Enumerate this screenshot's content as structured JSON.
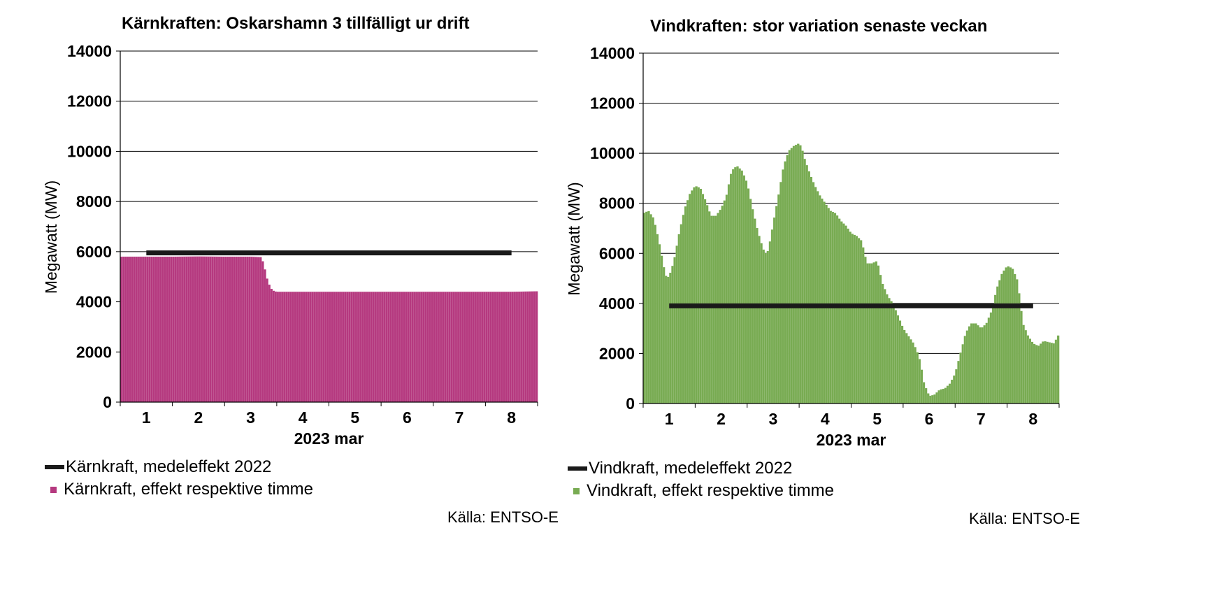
{
  "chart_data": [
    {
      "type": "bar",
      "title": "Kärnkraften: Oskarshamn 3 tillfälligt ur drift",
      "ylabel": "Megawatt (MW)",
      "xlabel": "2023 mar",
      "ylim": [
        0,
        14000
      ],
      "yticks": [
        "0",
        "2000",
        "4000",
        "6000",
        "8000",
        "10000",
        "12000",
        "14000"
      ],
      "x_tick_labels": [
        "1",
        "2",
        "3",
        "4",
        "5",
        "6",
        "7",
        "8"
      ],
      "x_start_day": 0.5,
      "x_end_day": 8.5,
      "grid": true,
      "bar_color": "#b5397f",
      "mean_line_color": "#1a1a1a",
      "mean_line": {
        "name": "Kärnkraft, medeleffekt 2022",
        "value": 5950,
        "x_from_day": 1,
        "x_to_day": 8
      },
      "series": [
        {
          "name": "Kärnkraft, effekt respektive timme",
          "x_day": [
            0.5,
            1.0,
            1.5,
            2.0,
            2.5,
            3.0,
            3.1,
            3.2,
            3.25,
            3.3,
            3.35,
            3.4,
            3.45,
            3.5,
            4.0,
            5.0,
            6.0,
            7.0,
            8.0,
            8.5
          ],
          "values": [
            5800,
            5800,
            5800,
            5810,
            5800,
            5800,
            5790,
            5780,
            5500,
            5000,
            4700,
            4500,
            4420,
            4400,
            4400,
            4400,
            4400,
            4400,
            4400,
            4420
          ]
        }
      ]
    },
    {
      "type": "bar",
      "title": "Vindkraften: stor variation senaste veckan",
      "ylabel": "Megawatt (MW)",
      "xlabel": "2023 mar",
      "ylim": [
        0,
        14000
      ],
      "yticks": [
        "0",
        "2000",
        "4000",
        "6000",
        "8000",
        "10000",
        "12000",
        "14000"
      ],
      "x_tick_labels": [
        "1",
        "2",
        "3",
        "4",
        "5",
        "6",
        "7",
        "8"
      ],
      "x_start_day": 0.5,
      "x_end_day": 8.5,
      "grid": true,
      "bar_color": "#78ab52",
      "mean_line_color": "#1a1a1a",
      "mean_line": {
        "name": "Vindkraft, medeleffekt 2022",
        "value": 3900,
        "x_from_day": 1,
        "x_to_day": 8
      },
      "series": [
        {
          "name": "Vindkraft, effekt respektive timme",
          "x_day": [
            0.5,
            0.6,
            0.7,
            0.8,
            0.9,
            0.95,
            1.0,
            1.05,
            1.1,
            1.2,
            1.3,
            1.4,
            1.5,
            1.6,
            1.7,
            1.8,
            1.9,
            2.0,
            2.1,
            2.2,
            2.3,
            2.4,
            2.5,
            2.6,
            2.7,
            2.8,
            2.85,
            2.9,
            2.95,
            3.0,
            3.1,
            3.2,
            3.3,
            3.4,
            3.5,
            3.55,
            3.6,
            3.7,
            3.8,
            3.9,
            4.0,
            4.1,
            4.2,
            4.3,
            4.4,
            4.5,
            4.6,
            4.7,
            4.8,
            4.9,
            5.0,
            5.1,
            5.2,
            5.3,
            5.4,
            5.5,
            5.6,
            5.7,
            5.8,
            5.85,
            5.9,
            6.0,
            6.1,
            6.2,
            6.3,
            6.4,
            6.5,
            6.6,
            6.7,
            6.8,
            6.9,
            7.0,
            7.1,
            7.2,
            7.3,
            7.4,
            7.5,
            7.6,
            7.7,
            7.8,
            7.9,
            8.0,
            8.1,
            8.2,
            8.3,
            8.4,
            8.5
          ],
          "values": [
            7600,
            7700,
            7400,
            6500,
            5400,
            5000,
            5100,
            5400,
            5800,
            6900,
            7800,
            8400,
            8700,
            8600,
            8100,
            7500,
            7500,
            7800,
            8300,
            9300,
            9500,
            9300,
            8800,
            7800,
            6900,
            6200,
            6000,
            6100,
            6600,
            7200,
            8300,
            9500,
            10100,
            10300,
            10400,
            10200,
            9800,
            9200,
            8700,
            8300,
            8000,
            7700,
            7600,
            7300,
            7100,
            6800,
            6700,
            6500,
            5600,
            5600,
            5700,
            4800,
            4300,
            4000,
            3500,
            3000,
            2700,
            2400,
            1900,
            1400,
            800,
            300,
            350,
            550,
            600,
            800,
            1200,
            2000,
            2800,
            3200,
            3200,
            3000,
            3200,
            3700,
            4600,
            5200,
            5500,
            5400,
            4900,
            3200,
            2700,
            2400,
            2300,
            2500,
            2450,
            2400,
            2800
          ]
        }
      ]
    }
  ],
  "legends": {
    "left": {
      "mean": "Kärnkraft, medeleffekt 2022",
      "bars": "Kärnkraft, effekt respektive timme"
    },
    "right": {
      "mean": "Vindkraft, medeleffekt 2022",
      "bars": "Vindkraft, effekt respektive timme"
    }
  },
  "sources": {
    "left": "Källa: ENTSO-E",
    "right": "Källa: ENTSO-E"
  }
}
